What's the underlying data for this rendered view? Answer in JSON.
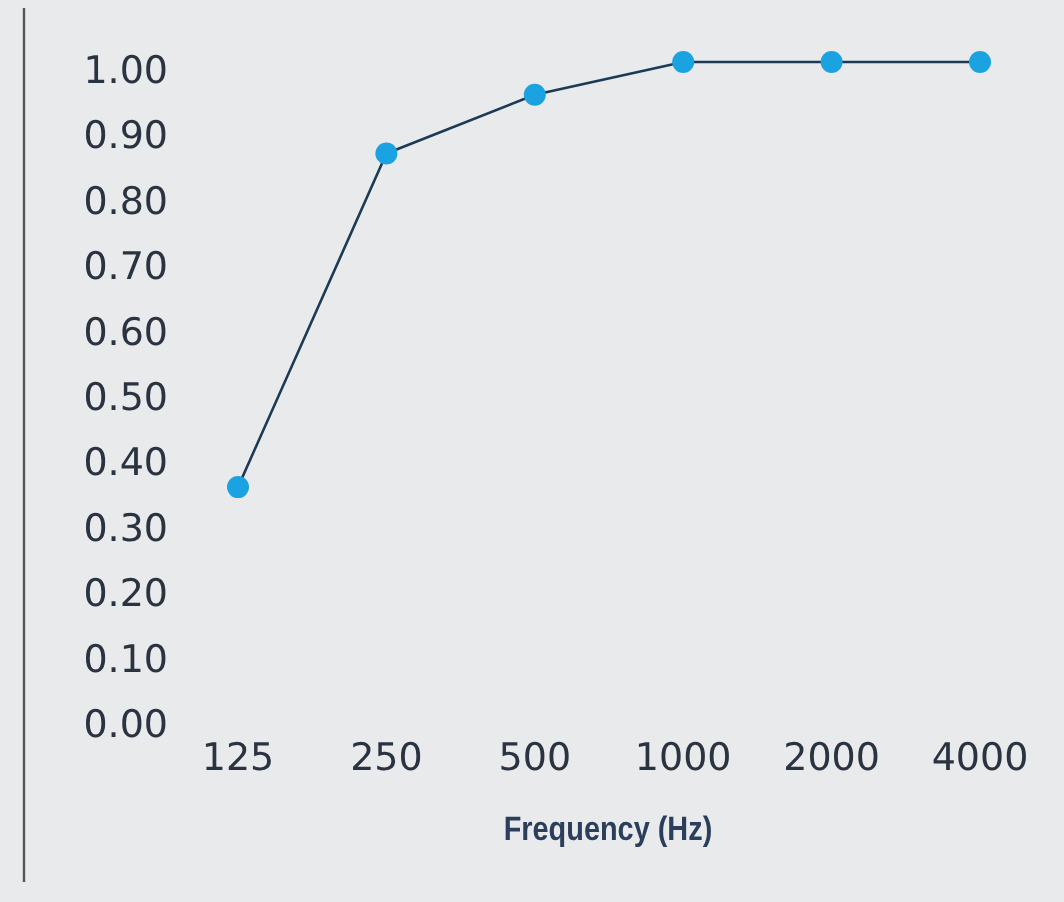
{
  "chart_data": {
    "type": "line",
    "xlabel": "Frequency (Hz)",
    "categories": [
      "125",
      "250",
      "500",
      "1000",
      "2000",
      "4000"
    ],
    "series": [
      {
        "color": "#1aa3e0",
        "values": [
          0.35,
          0.86,
          0.95,
          1.0,
          1.0,
          1.0
        ]
      }
    ],
    "ylim": [
      0,
      1
    ],
    "yticks": [
      {
        "value": 0,
        "label": "0.00"
      },
      {
        "value": 0.1,
        "label": "0.10"
      },
      {
        "value": 0.2,
        "label": "0.20"
      },
      {
        "value": 0.3,
        "label": "0.30"
      },
      {
        "value": 0.4,
        "label": "0.40"
      },
      {
        "value": 0.5,
        "label": "0.50"
      },
      {
        "value": 0.6,
        "label": "0.60"
      },
      {
        "value": 0.7,
        "label": "0.70"
      },
      {
        "value": 0.8,
        "label": "0.80"
      },
      {
        "value": 0.9,
        "label": "0.90"
      },
      {
        "value": 1,
        "label": "1.00"
      }
    ],
    "grid": false,
    "marker": "circle",
    "line_style": "solid"
  }
}
